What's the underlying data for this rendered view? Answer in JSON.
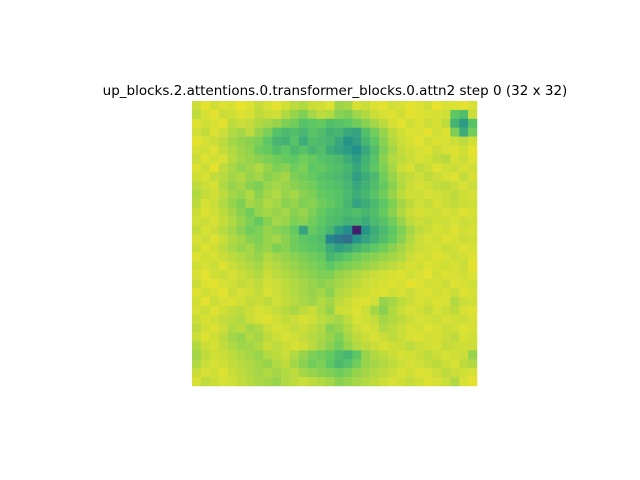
{
  "figure": {
    "title": "up_blocks.2.attentions.0.transformer_blocks.0.attn2 step 0 (32 x 32)"
  },
  "chart_data": {
    "type": "heatmap",
    "title": "up_blocks.2.attentions.0.transformer_blocks.0.attn2 step 0 (32 x 32)",
    "rows": 32,
    "cols": 32,
    "colormap": "viridis",
    "value_range": [
      0,
      1
    ],
    "axes_visible": false,
    "grid": false,
    "legend": "none",
    "values": [
      [
        0.92,
        0.96,
        0.93,
        0.95,
        0.94,
        0.97,
        0.95,
        0.91,
        0.94,
        0.96,
        0.93,
        0.9,
        0.88,
        0.92,
        0.93,
        0.95,
        0.85,
        0.87,
        0.94,
        0.92,
        0.95,
        0.96,
        0.93,
        0.94,
        0.96,
        0.95,
        0.93,
        0.97,
        0.94,
        0.95,
        0.96,
        0.94
      ],
      [
        0.9,
        0.94,
        0.96,
        0.92,
        0.93,
        0.95,
        0.94,
        0.9,
        0.92,
        0.93,
        0.88,
        0.84,
        0.8,
        0.86,
        0.9,
        0.88,
        0.82,
        0.8,
        0.85,
        0.88,
        0.92,
        0.94,
        0.95,
        0.93,
        0.96,
        0.95,
        0.94,
        0.94,
        0.93,
        0.75,
        0.7,
        0.92
      ],
      [
        0.95,
        0.93,
        0.94,
        0.96,
        0.9,
        0.92,
        0.91,
        0.88,
        0.86,
        0.84,
        0.8,
        0.78,
        0.72,
        0.74,
        0.76,
        0.7,
        0.72,
        0.74,
        0.78,
        0.82,
        0.86,
        0.9,
        0.94,
        0.96,
        0.93,
        0.95,
        0.92,
        0.94,
        0.9,
        0.65,
        0.55,
        0.72
      ],
      [
        0.93,
        0.91,
        0.95,
        0.92,
        0.88,
        0.86,
        0.9,
        0.84,
        0.8,
        0.72,
        0.68,
        0.7,
        0.66,
        0.72,
        0.7,
        0.64,
        0.66,
        0.6,
        0.58,
        0.7,
        0.78,
        0.84,
        0.9,
        0.93,
        0.95,
        0.94,
        0.96,
        0.93,
        0.95,
        0.8,
        0.62,
        0.78
      ],
      [
        0.96,
        0.94,
        0.92,
        0.9,
        0.86,
        0.84,
        0.82,
        0.8,
        0.74,
        0.66,
        0.64,
        0.72,
        0.62,
        0.7,
        0.68,
        0.66,
        0.6,
        0.52,
        0.56,
        0.66,
        0.74,
        0.82,
        0.88,
        0.92,
        0.94,
        0.96,
        0.93,
        0.95,
        0.94,
        0.92,
        0.9,
        0.93
      ],
      [
        0.94,
        0.93,
        0.95,
        0.91,
        0.88,
        0.85,
        0.83,
        0.78,
        0.76,
        0.7,
        0.74,
        0.68,
        0.72,
        0.66,
        0.7,
        0.62,
        0.58,
        0.55,
        0.5,
        0.6,
        0.7,
        0.8,
        0.86,
        0.91,
        0.93,
        0.94,
        0.95,
        0.92,
        0.94,
        0.95,
        0.93,
        0.96
      ],
      [
        0.92,
        0.95,
        0.93,
        0.94,
        0.89,
        0.86,
        0.84,
        0.82,
        0.8,
        0.78,
        0.76,
        0.74,
        0.78,
        0.76,
        0.72,
        0.7,
        0.68,
        0.62,
        0.56,
        0.64,
        0.72,
        0.82,
        0.88,
        0.9,
        0.92,
        0.94,
        0.93,
        0.91,
        0.89,
        0.94,
        0.92,
        0.95
      ],
      [
        0.95,
        0.92,
        0.96,
        0.9,
        0.87,
        0.83,
        0.85,
        0.88,
        0.84,
        0.8,
        0.82,
        0.78,
        0.8,
        0.74,
        0.76,
        0.72,
        0.7,
        0.66,
        0.6,
        0.66,
        0.74,
        0.8,
        0.86,
        0.92,
        0.94,
        0.9,
        0.92,
        0.95,
        0.93,
        0.92,
        0.94,
        0.93
      ],
      [
        0.93,
        0.94,
        0.91,
        0.89,
        0.86,
        0.88,
        0.84,
        0.86,
        0.82,
        0.84,
        0.86,
        0.8,
        0.78,
        0.76,
        0.72,
        0.7,
        0.68,
        0.64,
        0.56,
        0.62,
        0.68,
        0.78,
        0.84,
        0.89,
        0.91,
        0.93,
        0.9,
        0.92,
        0.94,
        0.95,
        0.91,
        0.94
      ],
      [
        0.9,
        0.92,
        0.94,
        0.88,
        0.84,
        0.86,
        0.82,
        0.8,
        0.84,
        0.86,
        0.84,
        0.82,
        0.8,
        0.78,
        0.74,
        0.72,
        0.7,
        0.66,
        0.6,
        0.64,
        0.7,
        0.76,
        0.82,
        0.88,
        0.92,
        0.94,
        0.93,
        0.91,
        0.9,
        0.92,
        0.94,
        0.92
      ],
      [
        0.88,
        0.91,
        0.93,
        0.9,
        0.86,
        0.84,
        0.88,
        0.82,
        0.86,
        0.88,
        0.84,
        0.86,
        0.82,
        0.8,
        0.76,
        0.74,
        0.72,
        0.68,
        0.62,
        0.66,
        0.72,
        0.78,
        0.84,
        0.9,
        0.93,
        0.92,
        0.94,
        0.93,
        0.92,
        0.9,
        0.93,
        0.94
      ],
      [
        0.9,
        0.94,
        0.92,
        0.88,
        0.84,
        0.8,
        0.86,
        0.84,
        0.88,
        0.86,
        0.82,
        0.84,
        0.8,
        0.82,
        0.78,
        0.76,
        0.72,
        0.66,
        0.58,
        0.62,
        0.68,
        0.74,
        0.8,
        0.86,
        0.9,
        0.93,
        0.91,
        0.94,
        0.92,
        0.91,
        0.92,
        0.93
      ],
      [
        0.92,
        0.95,
        0.93,
        0.9,
        0.86,
        0.82,
        0.78,
        0.84,
        0.86,
        0.84,
        0.86,
        0.82,
        0.84,
        0.8,
        0.76,
        0.72,
        0.7,
        0.68,
        0.7,
        0.66,
        0.7,
        0.76,
        0.82,
        0.88,
        0.92,
        0.94,
        0.93,
        0.92,
        0.94,
        0.93,
        0.95,
        0.94
      ],
      [
        0.93,
        0.92,
        0.94,
        0.91,
        0.88,
        0.84,
        0.8,
        0.76,
        0.82,
        0.86,
        0.84,
        0.8,
        0.82,
        0.78,
        0.74,
        0.7,
        0.68,
        0.64,
        0.66,
        0.62,
        0.68,
        0.72,
        0.78,
        0.84,
        0.9,
        0.92,
        0.91,
        0.93,
        0.92,
        0.94,
        0.92,
        0.93
      ],
      [
        0.91,
        0.94,
        0.92,
        0.89,
        0.86,
        0.82,
        0.78,
        0.8,
        0.84,
        0.82,
        0.8,
        0.76,
        0.58,
        0.76,
        0.72,
        0.66,
        0.55,
        0.48,
        0.1,
        0.52,
        0.62,
        0.68,
        0.74,
        0.8,
        0.86,
        0.9,
        0.92,
        0.94,
        0.93,
        0.95,
        0.93,
        0.94
      ],
      [
        0.94,
        0.92,
        0.95,
        0.92,
        0.88,
        0.86,
        0.82,
        0.8,
        0.84,
        0.86,
        0.82,
        0.78,
        0.74,
        0.72,
        0.7,
        0.46,
        0.4,
        0.36,
        0.52,
        0.58,
        0.64,
        0.7,
        0.76,
        0.82,
        0.88,
        0.92,
        0.94,
        0.93,
        0.95,
        0.94,
        0.92,
        0.93
      ],
      [
        0.92,
        0.95,
        0.93,
        0.9,
        0.87,
        0.84,
        0.86,
        0.82,
        0.84,
        0.8,
        0.82,
        0.78,
        0.76,
        0.74,
        0.72,
        0.62,
        0.56,
        0.6,
        0.66,
        0.7,
        0.74,
        0.78,
        0.82,
        0.86,
        0.9,
        0.92,
        0.93,
        0.94,
        0.92,
        0.93,
        0.95,
        0.94
      ],
      [
        0.95,
        0.93,
        0.94,
        0.92,
        0.9,
        0.88,
        0.86,
        0.84,
        0.88,
        0.86,
        0.84,
        0.82,
        0.8,
        0.78,
        0.76,
        0.66,
        0.7,
        0.74,
        0.78,
        0.8,
        0.82,
        0.84,
        0.86,
        0.88,
        0.92,
        0.94,
        0.93,
        0.95,
        0.94,
        0.92,
        0.93,
        0.95
      ],
      [
        0.93,
        0.94,
        0.92,
        0.95,
        0.92,
        0.9,
        0.88,
        0.86,
        0.9,
        0.88,
        0.86,
        0.84,
        0.82,
        0.8,
        0.78,
        0.74,
        0.78,
        0.8,
        0.82,
        0.84,
        0.86,
        0.88,
        0.9,
        0.92,
        0.94,
        0.93,
        0.95,
        0.94,
        0.93,
        0.94,
        0.92,
        0.96
      ],
      [
        0.94,
        0.96,
        0.93,
        0.92,
        0.94,
        0.92,
        0.9,
        0.88,
        0.92,
        0.9,
        0.88,
        0.86,
        0.84,
        0.82,
        0.8,
        0.8,
        0.84,
        0.86,
        0.88,
        0.9,
        0.92,
        0.93,
        0.94,
        0.95,
        0.93,
        0.94,
        0.96,
        0.93,
        0.95,
        0.94,
        0.93,
        0.95
      ],
      [
        0.92,
        0.95,
        0.96,
        0.94,
        0.93,
        0.91,
        0.92,
        0.9,
        0.93,
        0.92,
        0.9,
        0.88,
        0.86,
        0.84,
        0.82,
        0.84,
        0.86,
        0.88,
        0.9,
        0.92,
        0.93,
        0.94,
        0.95,
        0.94,
        0.96,
        0.95,
        0.93,
        0.94,
        0.92,
        0.95,
        0.94,
        0.93
      ],
      [
        0.95,
        0.93,
        0.94,
        0.96,
        0.92,
        0.94,
        0.93,
        0.91,
        0.94,
        0.92,
        0.9,
        0.88,
        0.86,
        0.84,
        0.86,
        0.82,
        0.88,
        0.9,
        0.92,
        0.93,
        0.94,
        0.95,
        0.93,
        0.94,
        0.92,
        0.94,
        0.95,
        0.93,
        0.94,
        0.92,
        0.95,
        0.94
      ],
      [
        0.93,
        0.96,
        0.92,
        0.94,
        0.95,
        0.93,
        0.91,
        0.92,
        0.9,
        0.93,
        0.91,
        0.89,
        0.87,
        0.85,
        0.88,
        0.86,
        0.9,
        0.92,
        0.94,
        0.95,
        0.93,
        0.84,
        0.86,
        0.9,
        0.92,
        0.94,
        0.93,
        0.95,
        0.94,
        0.88,
        0.92,
        0.93
      ],
      [
        0.94,
        0.92,
        0.95,
        0.93,
        0.91,
        0.9,
        0.92,
        0.94,
        0.93,
        0.91,
        0.89,
        0.87,
        0.9,
        0.92,
        0.88,
        0.84,
        0.92,
        0.93,
        0.95,
        0.92,
        0.86,
        0.82,
        0.88,
        0.92,
        0.94,
        0.93,
        0.91,
        0.94,
        0.92,
        0.9,
        0.94,
        0.95
      ],
      [
        0.92,
        0.94,
        0.93,
        0.91,
        0.9,
        0.88,
        0.92,
        0.94,
        0.95,
        0.93,
        0.91,
        0.92,
        0.94,
        0.93,
        0.9,
        0.88,
        0.86,
        0.9,
        0.94,
        0.93,
        0.91,
        0.86,
        0.88,
        0.9,
        0.92,
        0.94,
        0.93,
        0.92,
        0.94,
        0.93,
        0.92,
        0.94
      ],
      [
        0.9,
        0.93,
        0.95,
        0.92,
        0.88,
        0.9,
        0.86,
        0.88,
        0.92,
        0.94,
        0.93,
        0.91,
        0.92,
        0.9,
        0.88,
        0.82,
        0.84,
        0.88,
        0.92,
        0.94,
        0.93,
        0.88,
        0.9,
        0.92,
        0.94,
        0.93,
        0.95,
        0.94,
        0.92,
        0.93,
        0.95,
        0.94
      ],
      [
        0.92,
        0.95,
        0.93,
        0.9,
        0.86,
        0.84,
        0.88,
        0.86,
        0.9,
        0.92,
        0.94,
        0.93,
        0.91,
        0.89,
        0.87,
        0.84,
        0.8,
        0.86,
        0.9,
        0.92,
        0.94,
        0.92,
        0.9,
        0.92,
        0.94,
        0.95,
        0.93,
        0.94,
        0.92,
        0.9,
        0.94,
        0.93
      ],
      [
        0.88,
        0.92,
        0.94,
        0.91,
        0.88,
        0.85,
        0.86,
        0.88,
        0.92,
        0.9,
        0.92,
        0.94,
        0.93,
        0.9,
        0.86,
        0.82,
        0.78,
        0.84,
        0.88,
        0.9,
        0.92,
        0.94,
        0.93,
        0.92,
        0.9,
        0.92,
        0.93,
        0.94,
        0.91,
        0.92,
        0.93,
        0.92
      ],
      [
        0.86,
        0.9,
        0.93,
        0.92,
        0.9,
        0.88,
        0.86,
        0.84,
        0.88,
        0.9,
        0.92,
        0.88,
        0.84,
        0.8,
        0.78,
        0.76,
        0.7,
        0.66,
        0.74,
        0.84,
        0.88,
        0.9,
        0.92,
        0.94,
        0.93,
        0.92,
        0.9,
        0.92,
        0.94,
        0.93,
        0.92,
        0.84
      ],
      [
        0.88,
        0.92,
        0.94,
        0.93,
        0.91,
        0.89,
        0.88,
        0.86,
        0.84,
        0.88,
        0.9,
        0.86,
        0.82,
        0.78,
        0.8,
        0.74,
        0.68,
        0.72,
        0.78,
        0.84,
        0.86,
        0.88,
        0.9,
        0.92,
        0.94,
        0.93,
        0.91,
        0.9,
        0.92,
        0.94,
        0.9,
        0.88
      ],
      [
        0.92,
        0.94,
        0.93,
        0.95,
        0.92,
        0.9,
        0.88,
        0.86,
        0.88,
        0.86,
        0.88,
        0.9,
        0.86,
        0.84,
        0.82,
        0.8,
        0.78,
        0.8,
        0.84,
        0.86,
        0.88,
        0.9,
        0.92,
        0.94,
        0.93,
        0.95,
        0.94,
        0.92,
        0.9,
        0.92,
        0.93,
        0.94
      ],
      [
        0.94,
        0.9,
        0.92,
        0.94,
        0.93,
        0.91,
        0.89,
        0.87,
        0.86,
        0.84,
        0.88,
        0.9,
        0.92,
        0.9,
        0.88,
        0.86,
        0.82,
        0.84,
        0.86,
        0.88,
        0.9,
        0.92,
        0.94,
        0.93,
        0.91,
        0.93,
        0.95,
        0.94,
        0.92,
        0.88,
        0.94,
        0.96
      ]
    ]
  }
}
